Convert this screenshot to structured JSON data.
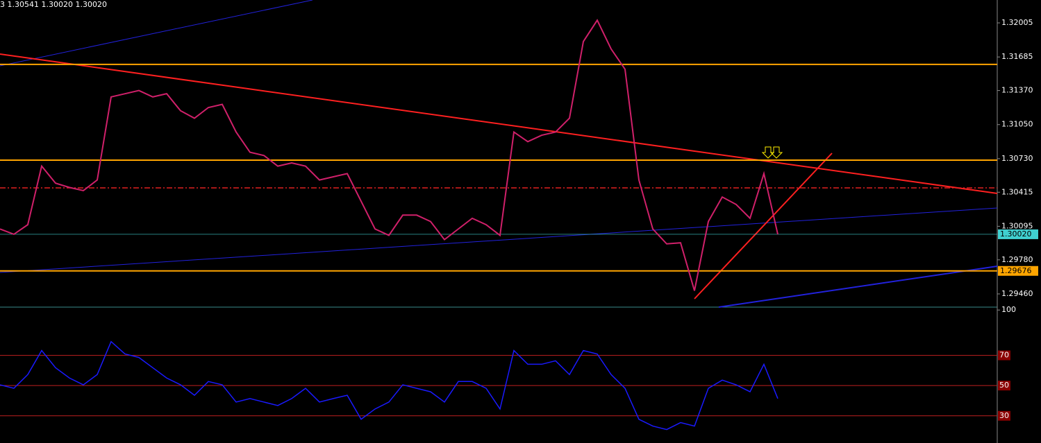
{
  "chart_data": [
    {
      "type": "line",
      "title": "3 1.30541 1.30020 1.30020",
      "values": [
        1.3007,
        1.3002,
        1.3011,
        1.3066,
        1.305,
        1.3046,
        1.3043,
        1.3053,
        1.3131,
        1.3134,
        1.3137,
        1.3131,
        1.3134,
        1.3118,
        1.3111,
        1.3121,
        1.3124,
        1.3098,
        1.3079,
        1.3076,
        1.3066,
        1.3069,
        1.3066,
        1.3053,
        1.3056,
        1.3059,
        1.3033,
        1.3007,
        1.3001,
        1.302,
        1.302,
        1.3014,
        1.2997,
        1.3007,
        1.3017,
        1.3011,
        1.3001,
        1.3098,
        1.3089,
        1.3095,
        1.3098,
        1.3111,
        1.3183,
        1.3203,
        1.3176,
        1.3157,
        1.3053,
        1.3007,
        1.2993,
        1.2994,
        1.2949,
        1.3014,
        1.3037,
        1.303,
        1.3017,
        1.3059,
        1.3002
      ],
      "color": "#d0206a",
      "ylim": [
        1.29336,
        1.3222
      ],
      "yticks": [
        1.32005,
        1.31685,
        {
          "value": 1.3137,
          "label": "1.31370"
        },
        {
          "value": 1.3105,
          "label": "1.31050"
        },
        {
          "value": 1.3073,
          "label": "1.30730"
        },
        1.30415,
        1.30095,
        {
          "value": 1.2978,
          "label": "1.29780"
        },
        {
          "value": 1.2946,
          "label": "1.29460"
        }
      ],
      "levels": [
        {
          "value": 1.31615,
          "color": "#ffa500"
        },
        {
          "value": 1.30716,
          "color": "#ffa500"
        },
        {
          "value": 1.29676,
          "color": "#ffa500"
        },
        {
          "value": 1.30456,
          "color": "#e02020",
          "dash": "dashdot"
        }
      ],
      "price_tags": [
        {
          "value": 1.3002,
          "label": "1.30020",
          "color": "#40d0d0"
        },
        {
          "value": 1.29676,
          "label": "1.29676",
          "color": "#ffa500"
        }
      ]
    },
    {
      "type": "line",
      "values": [
        50.5,
        48.2,
        57.3,
        73.2,
        61.8,
        55,
        50.5,
        57.3,
        79.1,
        70.9,
        68.6,
        61.8,
        55,
        50.5,
        43.6,
        52.7,
        50.5,
        39.1,
        41.4,
        39.1,
        36.8,
        41.4,
        48.2,
        39.1,
        41.4,
        43.6,
        27.7,
        34.5,
        39.1,
        50.5,
        48.2,
        45.9,
        39.1,
        52.7,
        52.7,
        48.2,
        34.5,
        73.2,
        64.1,
        64.1,
        66.4,
        57.3,
        73.2,
        70.9,
        57.3,
        48.2,
        27.7,
        23.2,
        20.9,
        25.5,
        23.2,
        48.2,
        53.6,
        50.5,
        45.9,
        64.1,
        41.4
      ],
      "color": "#1a1aff",
      "ylim": [
        12,
        101
      ],
      "yticks": [
        100
      ],
      "levels": [
        70,
        50,
        30
      ]
    }
  ]
}
